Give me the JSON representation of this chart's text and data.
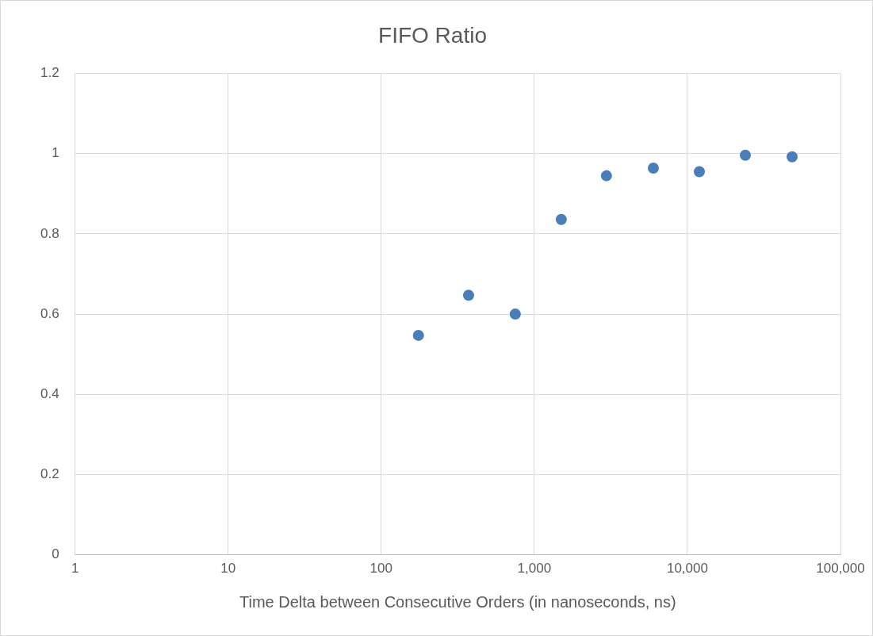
{
  "chart_data": {
    "type": "scatter",
    "title": "FIFO Ratio",
    "xlabel": "Time Delta between Consecutive Orders (in nanoseconds, ns)",
    "x": [
      175,
      372,
      751,
      1500,
      2960,
      5990,
      11970,
      23900,
      48300
    ],
    "values": [
      0.547,
      0.647,
      0.6,
      0.836,
      0.945,
      0.964,
      0.955,
      0.996,
      0.992
    ],
    "color": "#4a7ebb",
    "marker": "circle",
    "log": "x",
    "grid": true,
    "legend": false,
    "xlim": [
      1,
      100000
    ],
    "xticks": [
      1,
      10,
      100,
      {
        "value": 1000,
        "label": "1,000"
      },
      {
        "value": 10000,
        "label": "10,000"
      },
      {
        "value": 100000,
        "label": "100,000"
      }
    ],
    "ylim": [
      0,
      1.2
    ],
    "yticks": [
      0,
      0.2,
      0.4,
      0.6,
      0.8,
      1,
      1.2
    ]
  }
}
